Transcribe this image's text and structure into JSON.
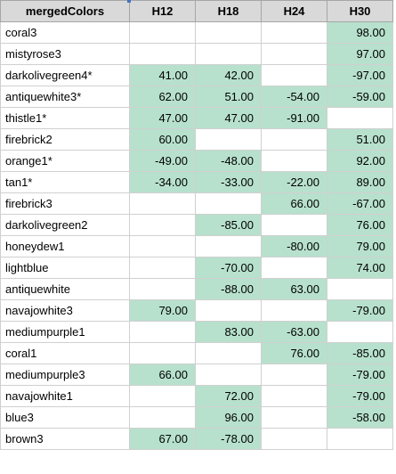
{
  "headers": [
    "mergedColors",
    "H12",
    "H18",
    "H24",
    "H30"
  ],
  "highlight_color": "#b7e1cd",
  "rows": [
    {
      "name": "coral3",
      "values": [
        "",
        "",
        "",
        "98.00"
      ]
    },
    {
      "name": "mistyrose3",
      "values": [
        "",
        "",
        "",
        "97.00"
      ]
    },
    {
      "name": "darkolivegreen4*",
      "values": [
        "41.00",
        "42.00",
        "",
        "-97.00"
      ]
    },
    {
      "name": "antiquewhite3*",
      "values": [
        "62.00",
        "51.00",
        "-54.00",
        "-59.00"
      ]
    },
    {
      "name": "thistle1*",
      "values": [
        "47.00",
        "47.00",
        "-91.00",
        ""
      ]
    },
    {
      "name": "firebrick2",
      "values": [
        "60.00",
        "",
        "",
        "51.00"
      ]
    },
    {
      "name": "orange1*",
      "values": [
        "-49.00",
        "-48.00",
        "",
        "92.00"
      ]
    },
    {
      "name": "tan1*",
      "values": [
        "-34.00",
        "-33.00",
        "-22.00",
        "89.00"
      ]
    },
    {
      "name": "firebrick3",
      "values": [
        "",
        "",
        "66.00",
        "-67.00"
      ]
    },
    {
      "name": "darkolivegreen2",
      "values": [
        "",
        "-85.00",
        "",
        "76.00"
      ]
    },
    {
      "name": "honeydew1",
      "values": [
        "",
        "",
        "-80.00",
        "79.00"
      ]
    },
    {
      "name": "lightblue",
      "values": [
        "",
        "-70.00",
        "",
        "74.00"
      ]
    },
    {
      "name": "antiquewhite",
      "values": [
        "",
        "-88.00",
        "63.00",
        ""
      ]
    },
    {
      "name": "navajowhite3",
      "values": [
        "79.00",
        "",
        "",
        "-79.00"
      ]
    },
    {
      "name": "mediumpurple1",
      "values": [
        "",
        "83.00",
        "-63.00",
        ""
      ]
    },
    {
      "name": "coral1",
      "values": [
        "",
        "",
        "76.00",
        "-85.00"
      ]
    },
    {
      "name": "mediumpurple3",
      "values": [
        "66.00",
        "",
        "",
        "-79.00"
      ]
    },
    {
      "name": "navajowhite1",
      "values": [
        "",
        "72.00",
        "",
        "-79.00"
      ]
    },
    {
      "name": "blue3",
      "values": [
        "",
        "96.00",
        "",
        "-58.00"
      ]
    },
    {
      "name": "brown3",
      "values": [
        "67.00",
        "-78.00",
        "",
        ""
      ]
    }
  ]
}
